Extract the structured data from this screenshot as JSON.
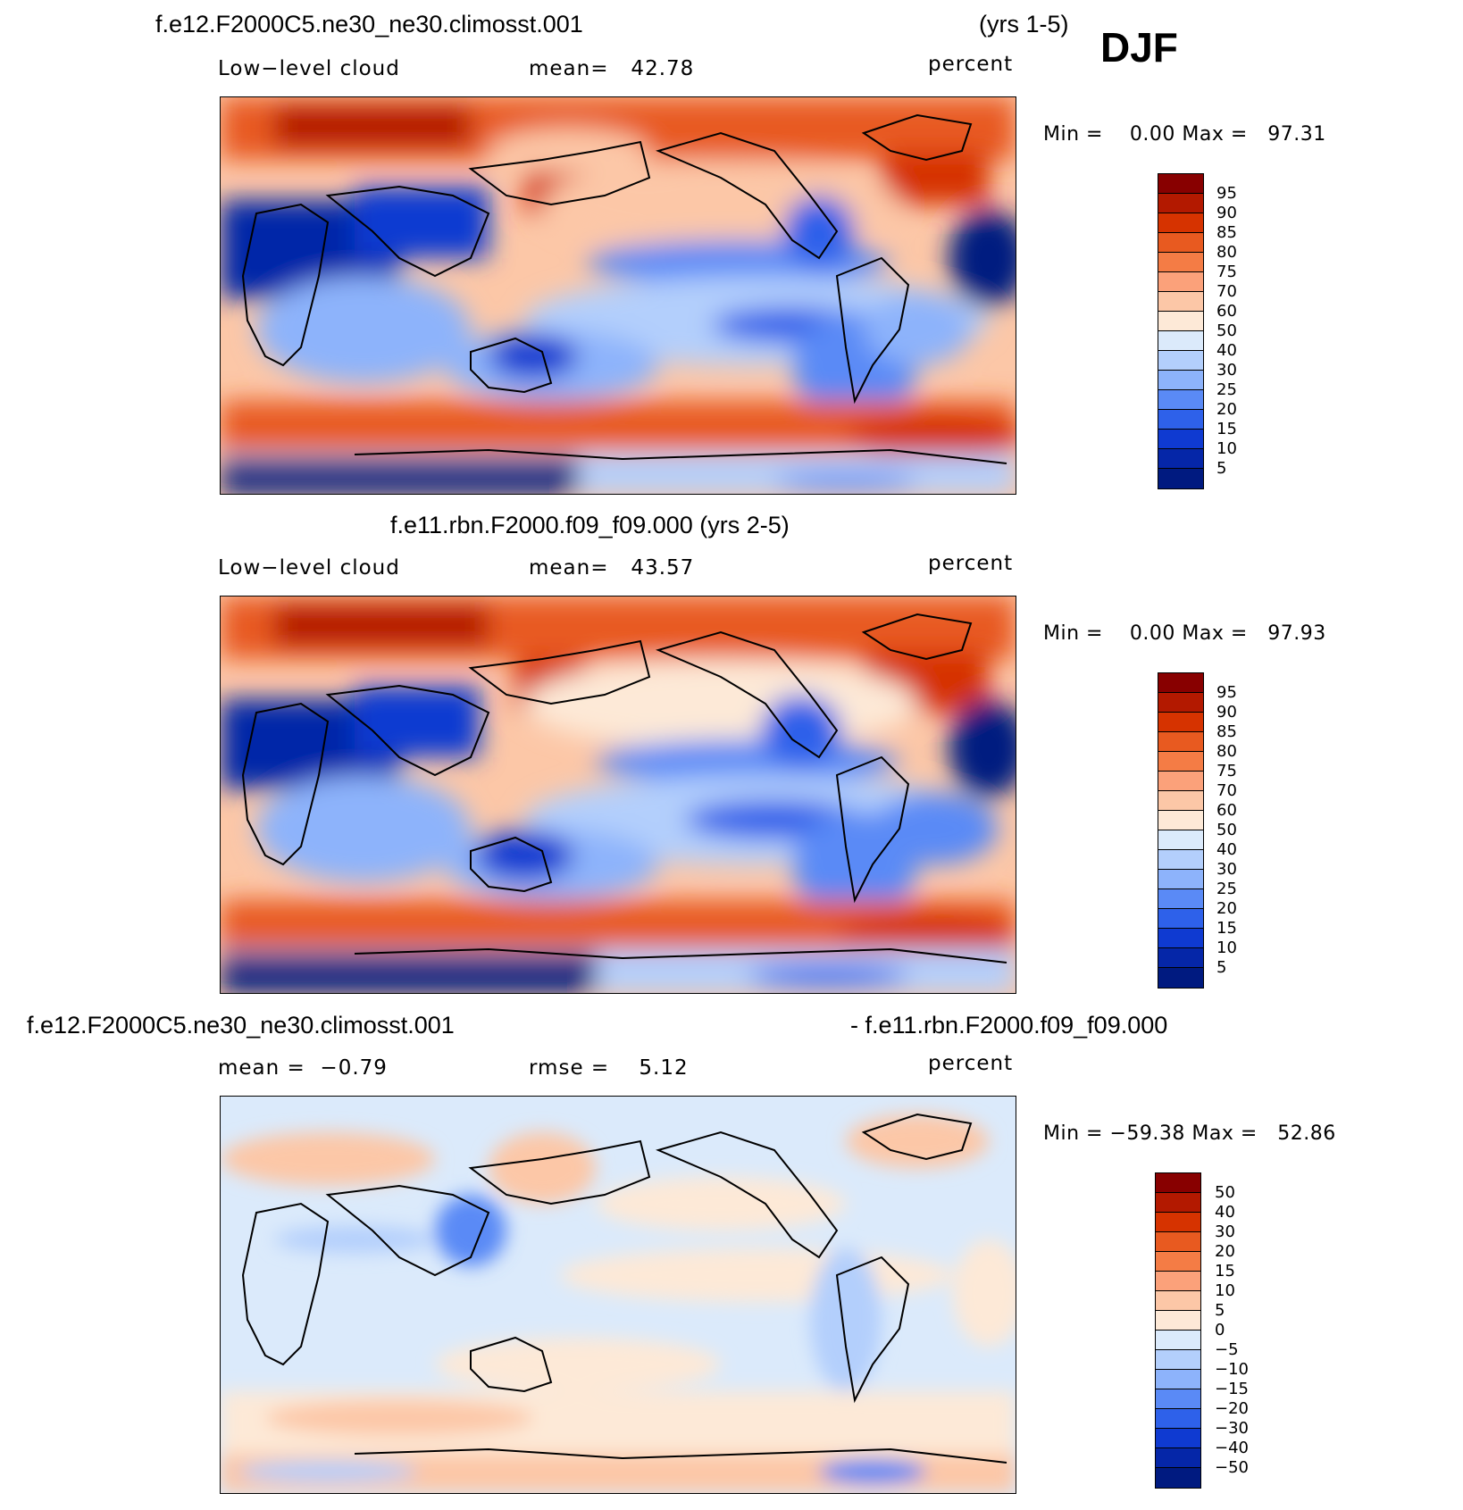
{
  "header": {
    "case1_title": "f.e12.F2000C5.ne30_ne30.climosst.001",
    "case1_years": "(yrs 1-5)",
    "season": "DJF",
    "case2_title": "f.e11.rbn.F2000.f09_f09.000 (yrs 2-5)",
    "diff_title_left": "f.e12.F2000C5.ne30_ne30.climosst.001",
    "diff_title_right": "- f.e11.rbn.F2000.f09_f09.000"
  },
  "panels": [
    {
      "variable": "Low−level cloud",
      "mean_label": "mean=   42.78",
      "units": "percent",
      "minmax": "Min =    0.00 Max =   97.31",
      "levels": [
        "95",
        "90",
        "85",
        "80",
        "75",
        "70",
        "60",
        "50",
        "40",
        "30",
        "25",
        "20",
        "15",
        "10",
        "5"
      ]
    },
    {
      "variable": "Low−level cloud",
      "mean_label": "mean=   43.57",
      "units": "percent",
      "minmax": "Min =    0.00 Max =   97.93",
      "levels": [
        "95",
        "90",
        "85",
        "80",
        "75",
        "70",
        "60",
        "50",
        "40",
        "30",
        "25",
        "20",
        "15",
        "10",
        "5"
      ]
    },
    {
      "variable": "mean =  −0.79",
      "mean_label": "rmse =    5.12",
      "units": "percent",
      "minmax": "Min = −59.38 Max =   52.86",
      "levels": [
        "50",
        "40",
        "30",
        "20",
        "15",
        "10",
        "5",
        "0",
        "−5",
        "−10",
        "−15",
        "−20",
        "−30",
        "−40",
        "−50"
      ]
    }
  ],
  "colors": {
    "palette": [
      "#880000",
      "#b31900",
      "#d63300",
      "#e85a20",
      "#f47c45",
      "#fba17a",
      "#fcc7a7",
      "#fde9d7",
      "#dbeafb",
      "#b3cffc",
      "#8db3fb",
      "#5a8af6",
      "#2e61ea",
      "#0f3ad1",
      "#0526a8",
      "#001a80"
    ]
  }
}
